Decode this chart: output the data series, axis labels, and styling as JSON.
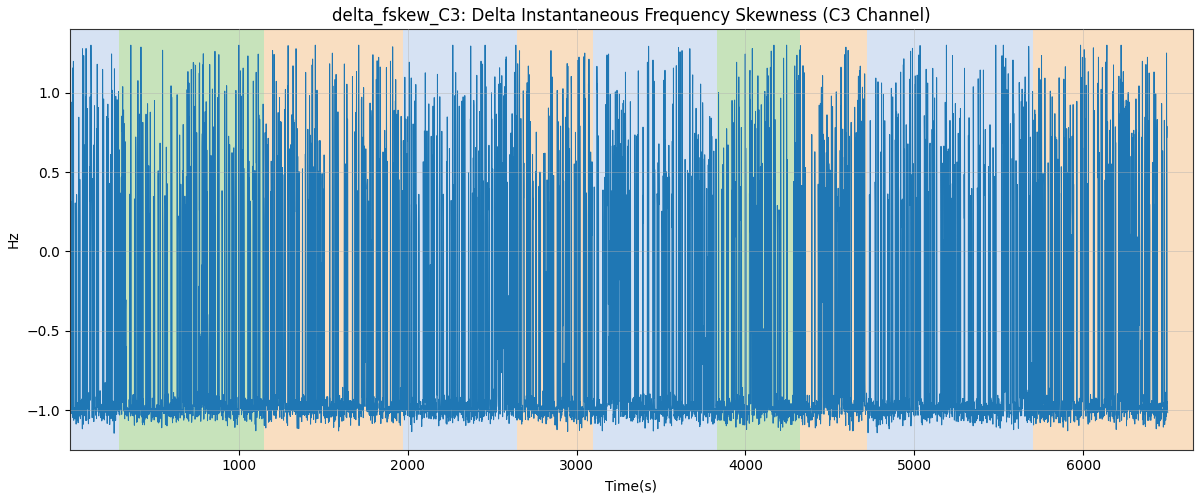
{
  "title": "delta_fskew_C3: Delta Instantaneous Frequency Skewness (C3 Channel)",
  "xlabel": "Time(s)",
  "ylabel": "Hz",
  "xlim": [
    0,
    6650
  ],
  "ylim": [
    -1.25,
    1.4
  ],
  "yticks": [
    -1.0,
    -0.5,
    0.0,
    0.5,
    1.0
  ],
  "xticks": [
    1000,
    2000,
    3000,
    4000,
    5000,
    6000
  ],
  "line_color": "#1f77b4",
  "line_width": 0.7,
  "background_color": "#ffffff",
  "grid_color": "#b0b0b0",
  "grid_alpha": 0.5,
  "colored_regions": [
    {
      "xmin": 0,
      "xmax": 290,
      "color": "#aec6e8",
      "alpha": 0.5
    },
    {
      "xmin": 290,
      "xmax": 1150,
      "color": "#90c878",
      "alpha": 0.5
    },
    {
      "xmin": 1150,
      "xmax": 1970,
      "color": "#f5c898",
      "alpha": 0.6
    },
    {
      "xmin": 1970,
      "xmax": 2650,
      "color": "#aec6e8",
      "alpha": 0.5
    },
    {
      "xmin": 2650,
      "xmax": 3100,
      "color": "#f5c898",
      "alpha": 0.6
    },
    {
      "xmin": 3100,
      "xmax": 3830,
      "color": "#aec6e8",
      "alpha": 0.5
    },
    {
      "xmin": 3830,
      "xmax": 4320,
      "color": "#90c878",
      "alpha": 0.5
    },
    {
      "xmin": 4320,
      "xmax": 4720,
      "color": "#f5c898",
      "alpha": 0.6
    },
    {
      "xmin": 4720,
      "xmax": 5700,
      "color": "#aec6e8",
      "alpha": 0.5
    },
    {
      "xmin": 5700,
      "xmax": 6650,
      "color": "#f5c898",
      "alpha": 0.6
    }
  ],
  "title_fontsize": 12,
  "label_fontsize": 10,
  "tick_fontsize": 10
}
